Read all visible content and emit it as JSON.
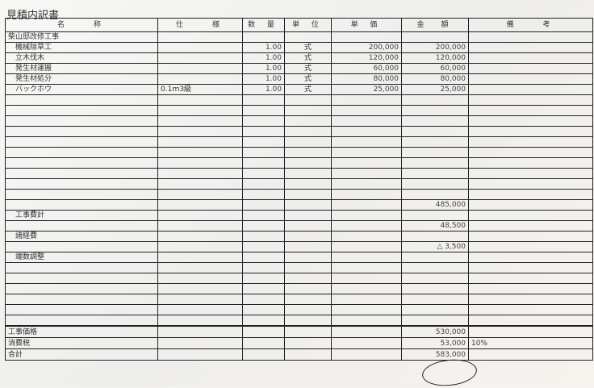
{
  "title": "見積内訳書",
  "headers": [
    "名　　称",
    "仕　　様",
    "数 量",
    "単 位",
    "単 価",
    "金　額",
    "備　　考"
  ],
  "rows": [
    {
      "name": "柴山邸改修工事",
      "spec": "",
      "qty": "",
      "unit": "",
      "price": "",
      "amount": "",
      "note": "",
      "indent": false
    },
    {
      "name": "機械除草工",
      "spec": "",
      "qty": "1.00",
      "unit": "式",
      "price": "200,000",
      "amount": "200,000",
      "note": "",
      "indent": true
    },
    {
      "name": "立木伐木",
      "spec": "",
      "qty": "1.00",
      "unit": "式",
      "price": "120,000",
      "amount": "120,000",
      "note": "",
      "indent": true
    },
    {
      "name": "発生材運搬",
      "spec": "",
      "qty": "1.00",
      "unit": "式",
      "price": "60,000",
      "amount": "60,000",
      "note": "",
      "indent": true
    },
    {
      "name": "発生材処分",
      "spec": "",
      "qty": "1.00",
      "unit": "式",
      "price": "80,000",
      "amount": "80,000",
      "note": "",
      "indent": true
    },
    {
      "name": "バックホウ",
      "spec": "0.1ｍ3級",
      "qty": "1.00",
      "unit": "式",
      "price": "25,000",
      "amount": "25,000",
      "note": "",
      "indent": true
    },
    {
      "name": "",
      "amount": ""
    },
    {
      "name": "",
      "amount": ""
    },
    {
      "name": "",
      "amount": ""
    },
    {
      "name": "",
      "amount": ""
    },
    {
      "name": "",
      "amount": ""
    },
    {
      "name": "",
      "amount": ""
    },
    {
      "name": "",
      "amount": ""
    },
    {
      "name": "",
      "amount": ""
    },
    {
      "name": "",
      "amount": ""
    },
    {
      "name": "",
      "amount": ""
    },
    {
      "name": "",
      "amount": "485,000"
    },
    {
      "name": "工事費計",
      "amount": "",
      "indent": true
    },
    {
      "name": "",
      "amount": "48,500"
    },
    {
      "name": "諸経費",
      "amount": "",
      "indent": true
    },
    {
      "name": "",
      "amount": "△ 3,500"
    },
    {
      "name": "端数調整",
      "amount": "",
      "indent": true
    },
    {
      "name": "",
      "amount": ""
    },
    {
      "name": "",
      "amount": ""
    },
    {
      "name": "",
      "amount": ""
    },
    {
      "name": "",
      "amount": ""
    },
    {
      "name": "",
      "amount": ""
    },
    {
      "name": "",
      "amount": ""
    }
  ],
  "footer": [
    {
      "name": "工事価格",
      "amount": "530,000",
      "note": ""
    },
    {
      "name": "消費税",
      "amount": "53,000",
      "note": "10%"
    },
    {
      "name": "合計",
      "amount": "583,000",
      "note": ""
    }
  ]
}
